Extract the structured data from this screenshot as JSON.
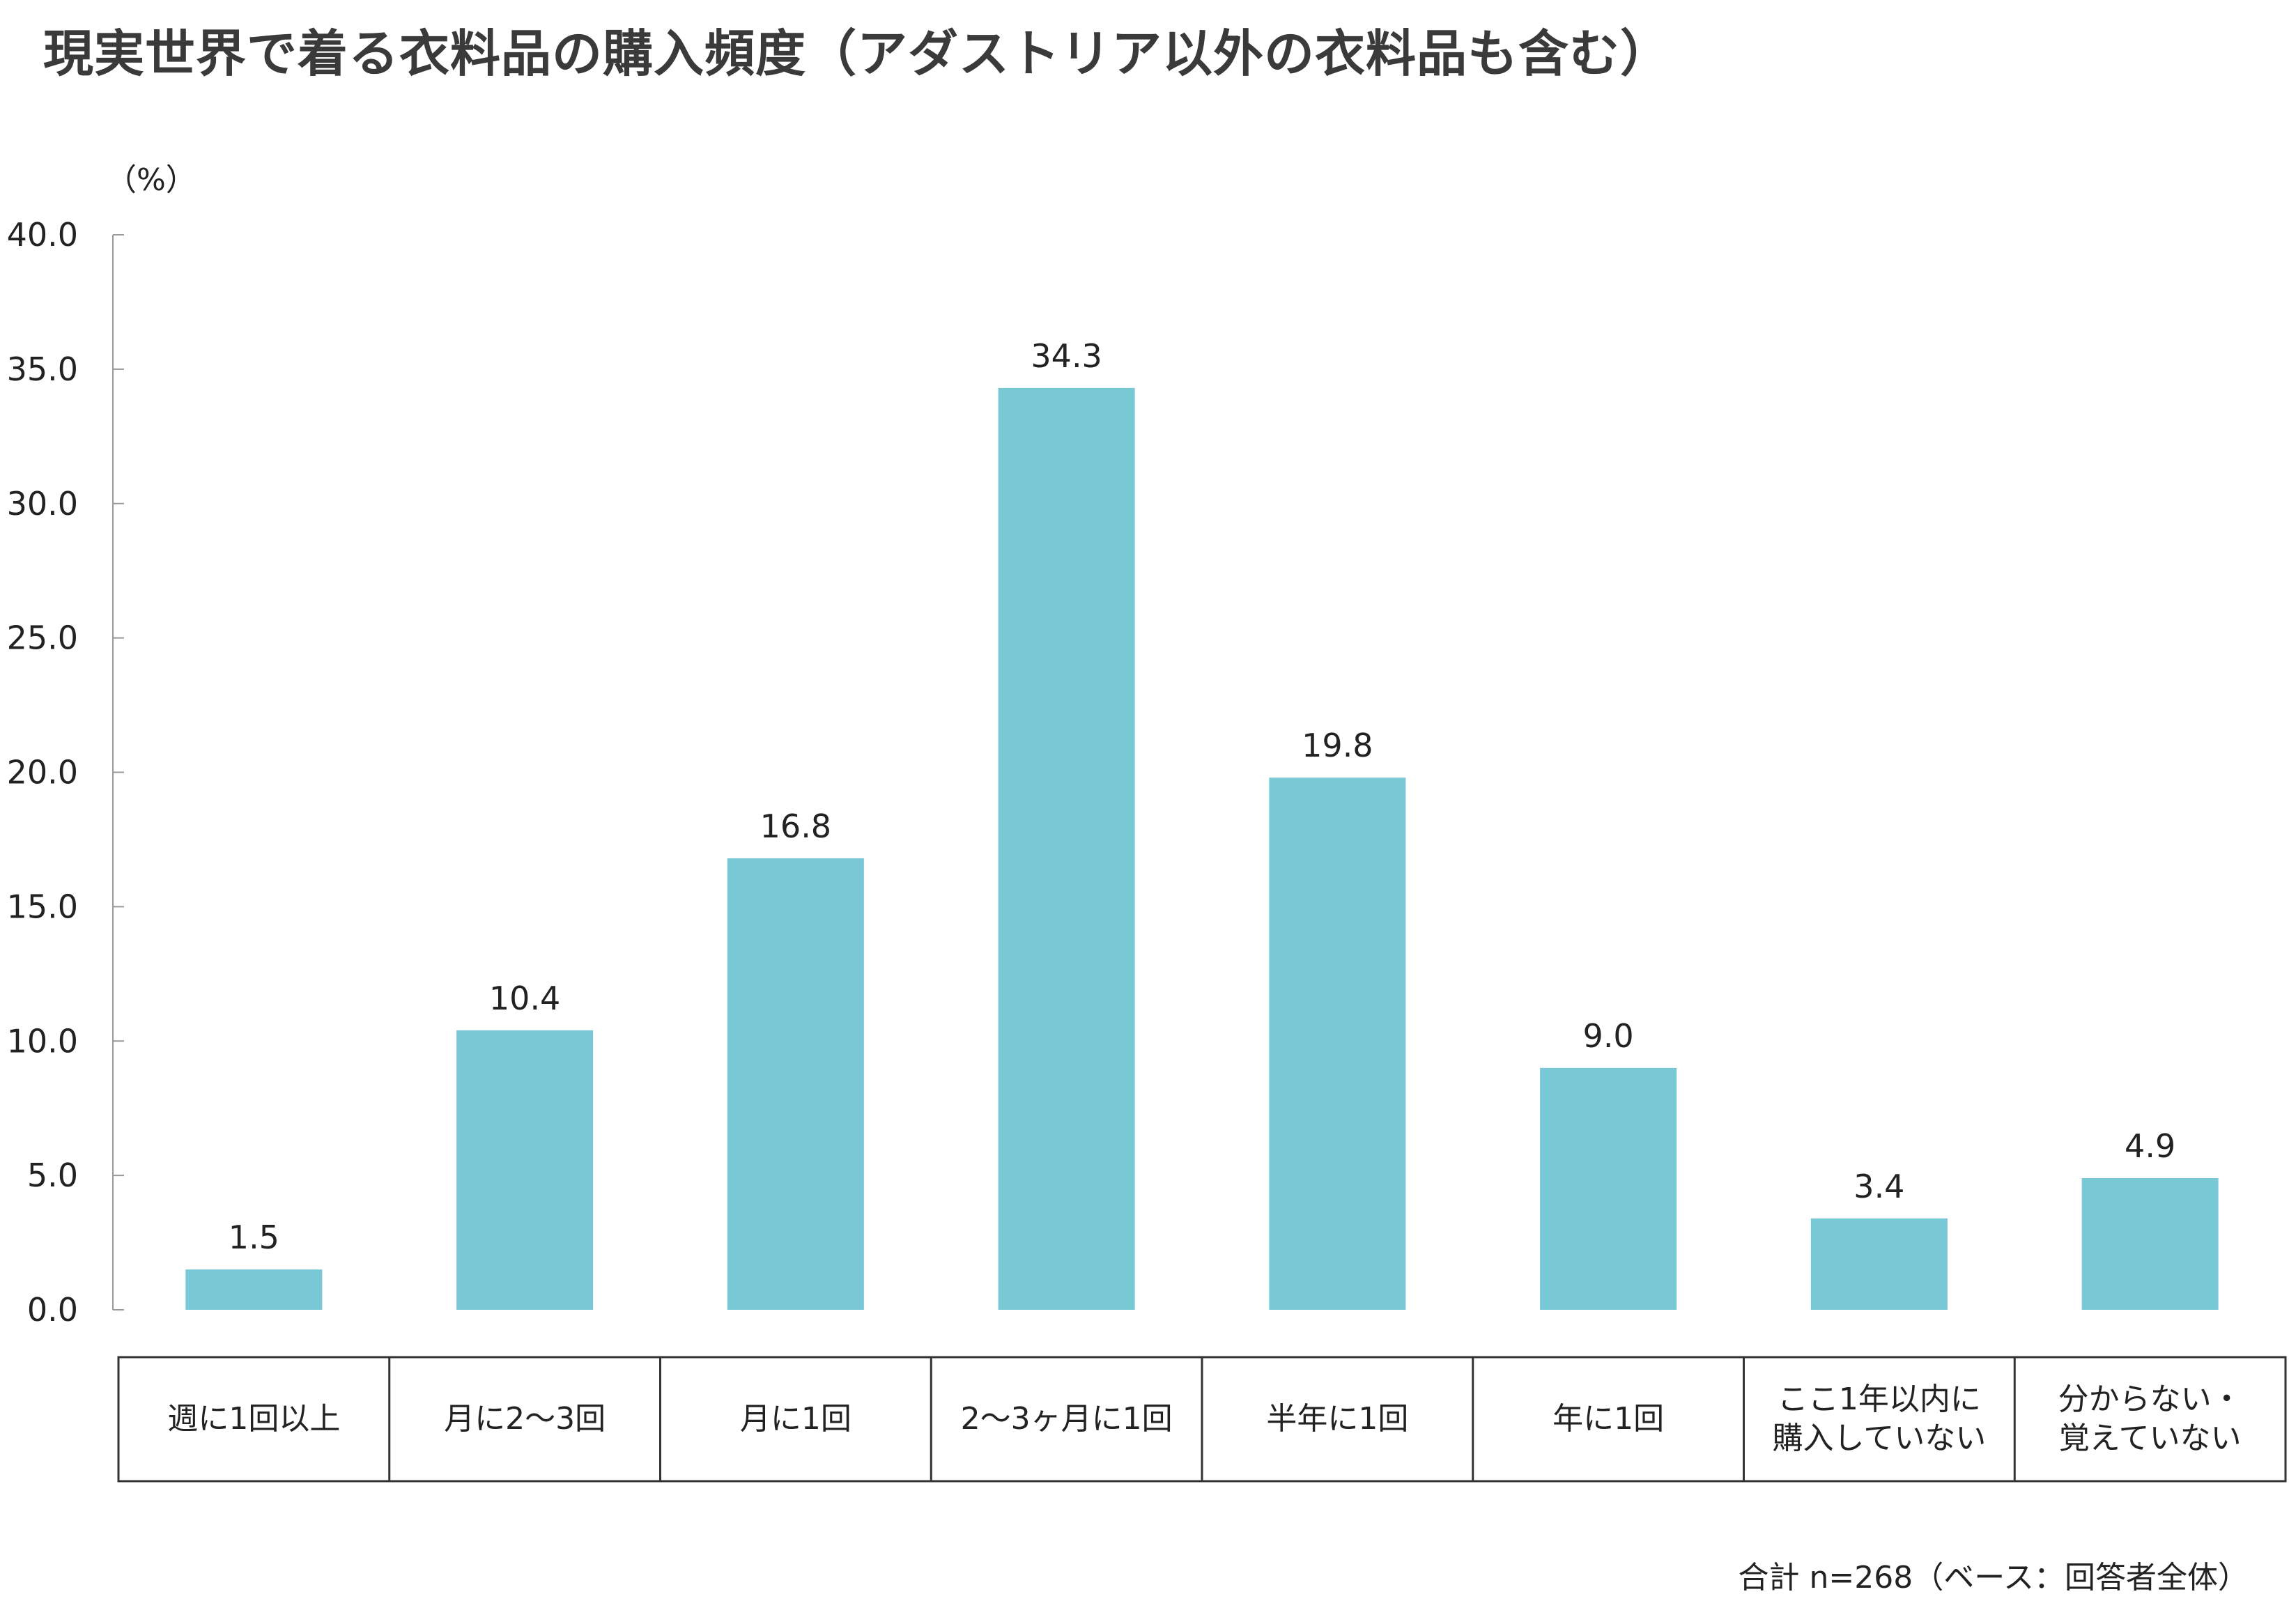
{
  "title": "現実世界で着る衣料品の購入頻度（アダストリア以外の衣料品も含む）",
  "unit_label": "（%）",
  "footnote": "合計 n=268（ベース：回答者全体）",
  "colors": {
    "bar": "#79c8d6",
    "axis": "#999999",
    "border": "#333333"
  },
  "chart_data": {
    "type": "bar",
    "title": "現実世界で着る衣料品の購入頻度（アダストリア以外の衣料品も含む）",
    "ylabel": "（%）",
    "ylim": [
      0,
      40
    ],
    "yticks": [
      "0.0",
      "5.0",
      "10.0",
      "15.0",
      "20.0",
      "25.0",
      "30.0",
      "35.0",
      "40.0"
    ],
    "categories": [
      "週に1回以上",
      "月に2～3回",
      "月に1回",
      "2～3ヶ月に1回",
      "半年に1回",
      "年に1回",
      "ここ1年以内に\n購入していない",
      "分からない・\n覚えていない"
    ],
    "values": [
      1.5,
      10.4,
      16.8,
      34.3,
      19.8,
      9.0,
      3.4,
      4.9
    ],
    "value_labels": [
      "1.5",
      "10.4",
      "16.8",
      "34.3",
      "19.8",
      "9.0",
      "3.4",
      "4.9"
    ],
    "grid": false,
    "legend": "none"
  }
}
